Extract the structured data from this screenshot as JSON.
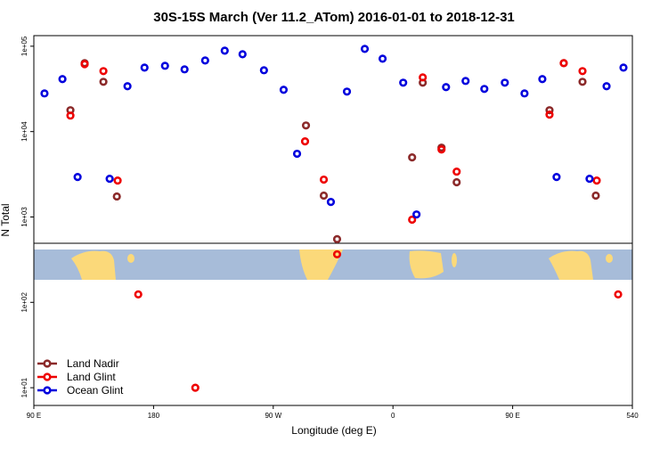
{
  "chart_data": {
    "type": "scatter",
    "title": "30S-15S March (Ver 11.2_ATom)   2016-01-01 to 2018-12-31",
    "x_label": "Longitude (deg E)",
    "y_label": "N Total",
    "log_y": true,
    "legend": "lower left",
    "xlim": [
      90,
      540
    ],
    "ylim": [
      6.2,
      133000
    ],
    "xticks": [
      {
        "value": 90,
        "label": "90 E"
      },
      180,
      {
        "value": 270,
        "label": "90 W"
      },
      {
        "value": 360,
        "label": "0"
      },
      {
        "value": 450,
        "label": "90 E"
      },
      540
    ],
    "yticks": [
      {
        "value": 10,
        "label": "1e+01"
      },
      {
        "value": 100,
        "label": "1e+02"
      },
      {
        "value": 1000,
        "label": "1e+03"
      },
      {
        "value": 10000,
        "label": "1e+04"
      },
      {
        "value": 100000,
        "label": "1e+05"
      }
    ],
    "series": [
      {
        "name": "Land Nadir",
        "color": "#8b2a2a",
        "x": [
          117.5,
          128.2,
          142.3,
          152.4,
          294.6,
          308,
          318,
          374.4,
          382.4,
          396.5,
          407.9,
          477.7,
          488.4,
          502.5,
          512.5
        ],
        "values": [
          17800,
          63400,
          38300,
          1740,
          11800,
          1780,
          550,
          4990,
          37400,
          6490,
          2550,
          17800,
          63400,
          38300,
          1780
        ]
      },
      {
        "name": "Land Glint",
        "color": "#ee0000",
        "x": [
          117.5,
          128.2,
          142.3,
          153,
          168.5,
          211.4,
          293.9,
          308,
          318,
          374.4,
          382.4,
          396.5,
          407.9,
          477.7,
          488.4,
          502.5,
          513.2,
          529.3
        ],
        "values": [
          15400,
          61600,
          51100,
          2670,
          124,
          10,
          7680,
          2740,
          365,
          930,
          43100,
          6170,
          3400,
          15800,
          63400,
          51100,
          2670,
          124
        ]
      },
      {
        "name": "Ocean Glint",
        "color": "#0000dd",
        "x": [
          98,
          111.5,
          122.9,
          147,
          160.4,
          173.2,
          188.6,
          203.3,
          218.8,
          233.5,
          246.9,
          263,
          277.8,
          287.9,
          313.3,
          325.4,
          338.8,
          352.2,
          367.7,
          377.7,
          399.9,
          414.6,
          428.7,
          444.1,
          458.9,
          472.3,
          483,
          507.8,
          520.6,
          533.3
        ],
        "values": [
          28000,
          41200,
          2940,
          2800,
          34000,
          56200,
          59000,
          53600,
          68100,
          88700,
          80500,
          52300,
          30900,
          5500,
          1500,
          29400,
          93100,
          71400,
          37400,
          1070,
          33200,
          39200,
          31600,
          37400,
          28000,
          41200,
          2940,
          2800,
          34000,
          56200
        ]
      }
    ]
  }
}
